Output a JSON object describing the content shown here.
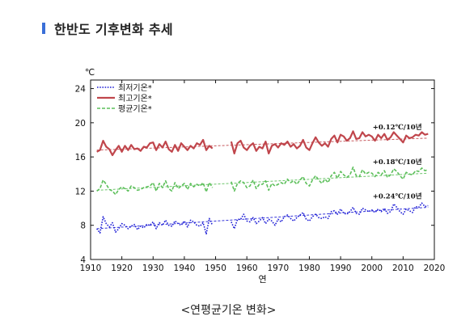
{
  "header": {
    "title": "한반도 기후변화 추세",
    "marker_color": "#3a6fd8"
  },
  "caption": "<연평균기온 변화>",
  "chart_data": {
    "type": "line",
    "ylabel": "℃",
    "xlabel": "연",
    "xlim": [
      1910,
      2020
    ],
    "ylim": [
      4,
      25
    ],
    "xticks": [
      1910,
      1920,
      1930,
      1940,
      1950,
      1960,
      1970,
      1980,
      1990,
      2000,
      2010,
      2020
    ],
    "yticks": [
      4,
      8,
      12,
      16,
      20,
      24
    ],
    "legend_position": "top-left",
    "grid": false,
    "x": [
      1912,
      1913,
      1914,
      1915,
      1916,
      1917,
      1918,
      1919,
      1920,
      1921,
      1922,
      1923,
      1924,
      1925,
      1926,
      1927,
      1928,
      1929,
      1930,
      1931,
      1932,
      1933,
      1934,
      1935,
      1936,
      1937,
      1938,
      1939,
      1940,
      1941,
      1942,
      1943,
      1944,
      1945,
      1946,
      1947,
      1948,
      1949,
      1950,
      1951,
      1952,
      1953,
      1954,
      1955,
      1956,
      1957,
      1958,
      1959,
      1960,
      1961,
      1962,
      1963,
      1964,
      1965,
      1966,
      1967,
      1968,
      1969,
      1970,
      1971,
      1972,
      1973,
      1974,
      1975,
      1976,
      1977,
      1978,
      1979,
      1980,
      1981,
      1982,
      1983,
      1984,
      1985,
      1986,
      1987,
      1988,
      1989,
      1990,
      1991,
      1992,
      1993,
      1994,
      1995,
      1996,
      1997,
      1998,
      1999,
      2000,
      2001,
      2002,
      2003,
      2004,
      2005,
      2006,
      2007,
      2008,
      2009,
      2010,
      2011,
      2012,
      2013,
      2014,
      2015,
      2016,
      2017,
      2018
    ],
    "series": [
      {
        "name": "최저기온*",
        "color": "#1f1fd6",
        "style": "dotted",
        "trend_label": "+0.24℃/10년",
        "trend_start": 7.6,
        "trend_end": 10.1,
        "values": [
          7.6,
          7.1,
          9.0,
          8.2,
          7.8,
          8.3,
          7.2,
          7.6,
          8.2,
          8.0,
          7.6,
          7.9,
          8.1,
          7.5,
          7.9,
          7.7,
          8.1,
          8.0,
          8.4,
          7.6,
          8.3,
          8.0,
          8.6,
          8.0,
          7.9,
          8.5,
          8.2,
          8.0,
          8.5,
          7.8,
          8.6,
          8.4,
          8.0,
          7.9,
          8.3,
          7.0,
          8.8,
          8.0,
          null,
          null,
          null,
          null,
          null,
          8.4,
          7.6,
          8.7,
          8.7,
          9.3,
          8.5,
          8.4,
          8.9,
          8.2,
          8.5,
          8.9,
          8.2,
          8.7,
          8.5,
          8.0,
          8.7,
          8.4,
          9.0,
          9.2,
          8.8,
          8.5,
          8.9,
          9.2,
          9.5,
          8.7,
          8.5,
          9.0,
          9.3,
          8.9,
          8.8,
          9.0,
          8.8,
          9.6,
          9.7,
          9.3,
          9.9,
          9.4,
          9.3,
          9.6,
          10.1,
          9.4,
          9.3,
          10.0,
          9.8,
          9.6,
          9.8,
          9.5,
          9.9,
          9.6,
          10.0,
          9.4,
          9.6,
          10.5,
          10.1,
          9.6,
          9.3,
          9.9,
          9.7,
          9.5,
          10.2,
          10.1,
          10.6,
          10.2,
          10.3
        ]
      },
      {
        "name": "최고기온*",
        "color": "#c0464c",
        "style": "solid",
        "trend_label": "+0.12℃/10년",
        "trend_start": 16.8,
        "trend_end": 18.2,
        "values": [
          16.6,
          16.8,
          17.9,
          17.2,
          16.9,
          16.2,
          16.8,
          17.3,
          16.6,
          17.3,
          16.8,
          17.4,
          16.9,
          17.0,
          16.7,
          17.2,
          17.1,
          17.6,
          17.7,
          16.8,
          17.5,
          17.1,
          17.8,
          16.9,
          16.6,
          17.4,
          16.7,
          17.6,
          17.2,
          16.8,
          17.3,
          17.0,
          17.6,
          17.4,
          18.0,
          16.8,
          17.3,
          17.0,
          null,
          null,
          null,
          null,
          null,
          17.8,
          16.4,
          17.6,
          17.9,
          17.1,
          16.8,
          17.3,
          17.6,
          16.7,
          17.2,
          17.0,
          17.8,
          16.4,
          17.3,
          17.5,
          17.1,
          17.6,
          17.4,
          17.8,
          17.2,
          17.5,
          17.0,
          17.3,
          18.0,
          17.1,
          16.8,
          17.6,
          18.3,
          17.7,
          17.3,
          17.6,
          17.2,
          18.1,
          18.5,
          17.7,
          18.6,
          18.4,
          17.9,
          18.2,
          19.0,
          18.1,
          18.2,
          18.9,
          18.4,
          18.6,
          18.4,
          17.9,
          18.6,
          18.2,
          18.7,
          18.0,
          18.3,
          18.9,
          18.5,
          18.1,
          17.7,
          18.5,
          18.2,
          18.3,
          18.6,
          18.5,
          18.9,
          18.6,
          18.7
        ]
      },
      {
        "name": "평균기온*",
        "color": "#5cbf5a",
        "style": "dashed",
        "trend_label": "+0.18℃/10년",
        "trend_start": 12.1,
        "trend_end": 14.1,
        "values": [
          12.0,
          12.3,
          13.3,
          12.8,
          12.2,
          12.0,
          11.6,
          12.2,
          12.5,
          12.3,
          12.0,
          12.6,
          12.4,
          12.1,
          12.2,
          12.4,
          12.5,
          12.6,
          13.0,
          12.0,
          12.9,
          12.4,
          13.2,
          12.3,
          12.0,
          13.0,
          12.3,
          12.6,
          12.9,
          12.2,
          12.9,
          12.5,
          12.8,
          12.6,
          13.0,
          11.9,
          13.0,
          12.4,
          null,
          null,
          null,
          null,
          null,
          13.1,
          12.0,
          12.9,
          13.2,
          13.0,
          12.4,
          12.6,
          13.3,
          12.3,
          12.8,
          12.8,
          13.2,
          12.1,
          12.9,
          12.6,
          12.8,
          13.0,
          12.8,
          13.4,
          13.0,
          13.2,
          12.8,
          13.3,
          13.7,
          12.9,
          12.6,
          13.3,
          13.8,
          13.3,
          12.9,
          13.4,
          13.0,
          13.8,
          14.2,
          13.5,
          14.3,
          13.9,
          13.6,
          13.9,
          14.8,
          13.8,
          13.7,
          14.5,
          14.0,
          14.2,
          14.1,
          13.7,
          14.2,
          13.9,
          14.4,
          13.6,
          13.9,
          14.6,
          14.3,
          13.8,
          13.4,
          14.2,
          14.0,
          13.9,
          14.4,
          14.3,
          14.7,
          14.4,
          14.5
        ]
      }
    ]
  }
}
